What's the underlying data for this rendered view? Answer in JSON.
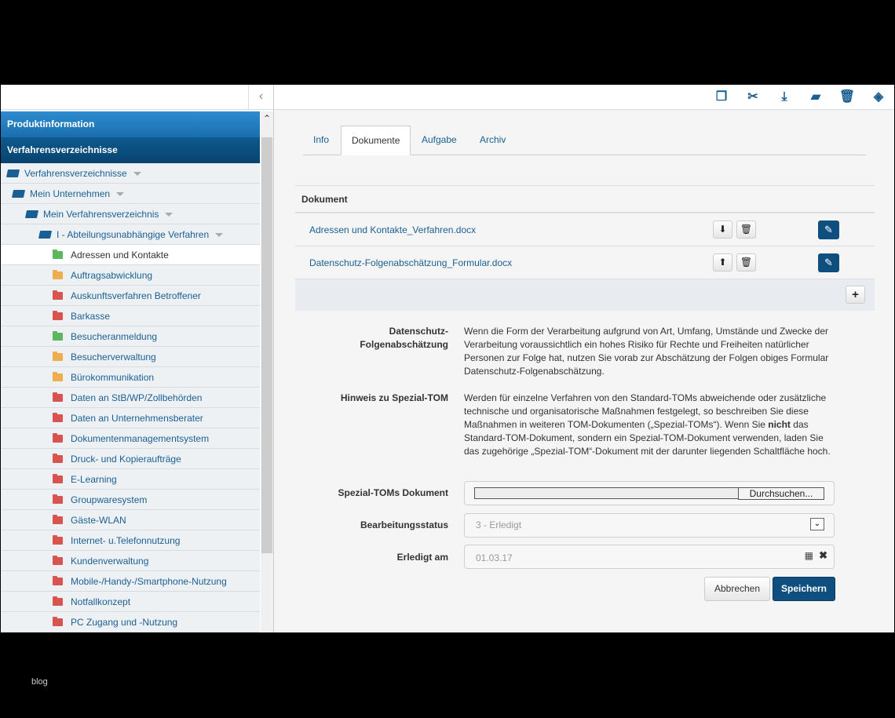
{
  "sidebar": {
    "sections": [
      "Produktinformation",
      "Verfahrensverzeichnisse"
    ],
    "tree": [
      {
        "label": "Verfahrensverzeichnisse",
        "level": 0
      },
      {
        "label": "Mein Unternehmen",
        "level": 1
      },
      {
        "label": "Mein Verfahrensverzeichnis",
        "level": 2
      },
      {
        "label": "I - Abteilungsunabhängige Verfahren",
        "level": 3
      }
    ],
    "items": [
      {
        "label": "Adressen und Kontakte",
        "color": "#5cb85c"
      },
      {
        "label": "Auftragsabwicklung",
        "color": "#f0ad4e"
      },
      {
        "label": "Auskunftsverfahren Betroffener",
        "color": "#d9534f"
      },
      {
        "label": "Barkasse",
        "color": "#d9534f"
      },
      {
        "label": "Besucheranmeldung",
        "color": "#5cb85c"
      },
      {
        "label": "Besucherverwaltung",
        "color": "#f0ad4e"
      },
      {
        "label": "Bürokommunikation",
        "color": "#f0ad4e"
      },
      {
        "label": "Daten an StB/WP/Zollbehörden",
        "color": "#d9534f"
      },
      {
        "label": "Daten an Unternehmensberater",
        "color": "#d9534f"
      },
      {
        "label": "Dokumentenmanagementsystem",
        "color": "#d9534f"
      },
      {
        "label": "Druck- und Kopieraufträge",
        "color": "#d9534f"
      },
      {
        "label": "E-Learning",
        "color": "#d9534f"
      },
      {
        "label": "Groupwaresystem",
        "color": "#d9534f"
      },
      {
        "label": "Gäste-WLAN",
        "color": "#d9534f"
      },
      {
        "label": "Internet- u.Telefonnutzung",
        "color": "#d9534f"
      },
      {
        "label": "Kundenverwaltung",
        "color": "#d9534f"
      },
      {
        "label": "Mobile-/Handy-/Smartphone-Nutzung",
        "color": "#d9534f"
      },
      {
        "label": "Notfallkonzept",
        "color": "#d9534f"
      },
      {
        "label": "PC Zugang und -Nutzung",
        "color": "#d9534f"
      }
    ]
  },
  "tabs": [
    "Info",
    "Dokumente",
    "Aufgabe",
    "Archiv"
  ],
  "documents": {
    "header": "Dokument",
    "rows": [
      "Adressen und Kontakte_Verfahren.docx",
      "Datenschutz-Folgenabschätzung_Formular.docx"
    ]
  },
  "form": {
    "dsfa_label": "Datenschutz-Folgenabschätzung",
    "dsfa_text": "Wenn die Form der Verarbeitung aufgrund von Art, Umfang, Umstände und Zwecke der Verarbeitung voraussichtlich ein hohes Risiko für Rechte und Freiheiten natürlicher Personen zur Folge hat, nutzen Sie vorab zur Abschätzung der Folgen obiges Formular Datenschutz-Folgenabschätzung.",
    "hint_label": "Hinweis zu Spezial-TOM",
    "hint_text_1": "Werden für einzelne Verfahren von den Standard-TOMs abweichende oder zusätzliche technische und organisatorische Maßnahmen festgelegt, so beschreiben Sie diese Maßnahmen in weiteren TOM-Dokumenten („Spezial-TOMs“). Wenn Sie ",
    "hint_bold": "nicht",
    "hint_text_2": " das Standard-TOM-Dokument, sondern ein Spezial-TOM-Dokument verwenden, laden Sie das zugehörige „Spezial-TOM“-Dokument mit der darunter liegenden Schaltfläche hoch.",
    "file_label": "Spezial-TOMs Dokument",
    "browse": "Durchsuchen...",
    "status_label": "Bearbeitungsstatus",
    "status_value": "3 - Erledigt",
    "date_label": "Erledigt am",
    "date_value": "01.03.17",
    "cancel": "Abbrechen",
    "save": "Speichern"
  },
  "footer": "blog",
  "colors": {
    "accent": "#1a5f93",
    "primary_button": "#0e4f7f"
  }
}
